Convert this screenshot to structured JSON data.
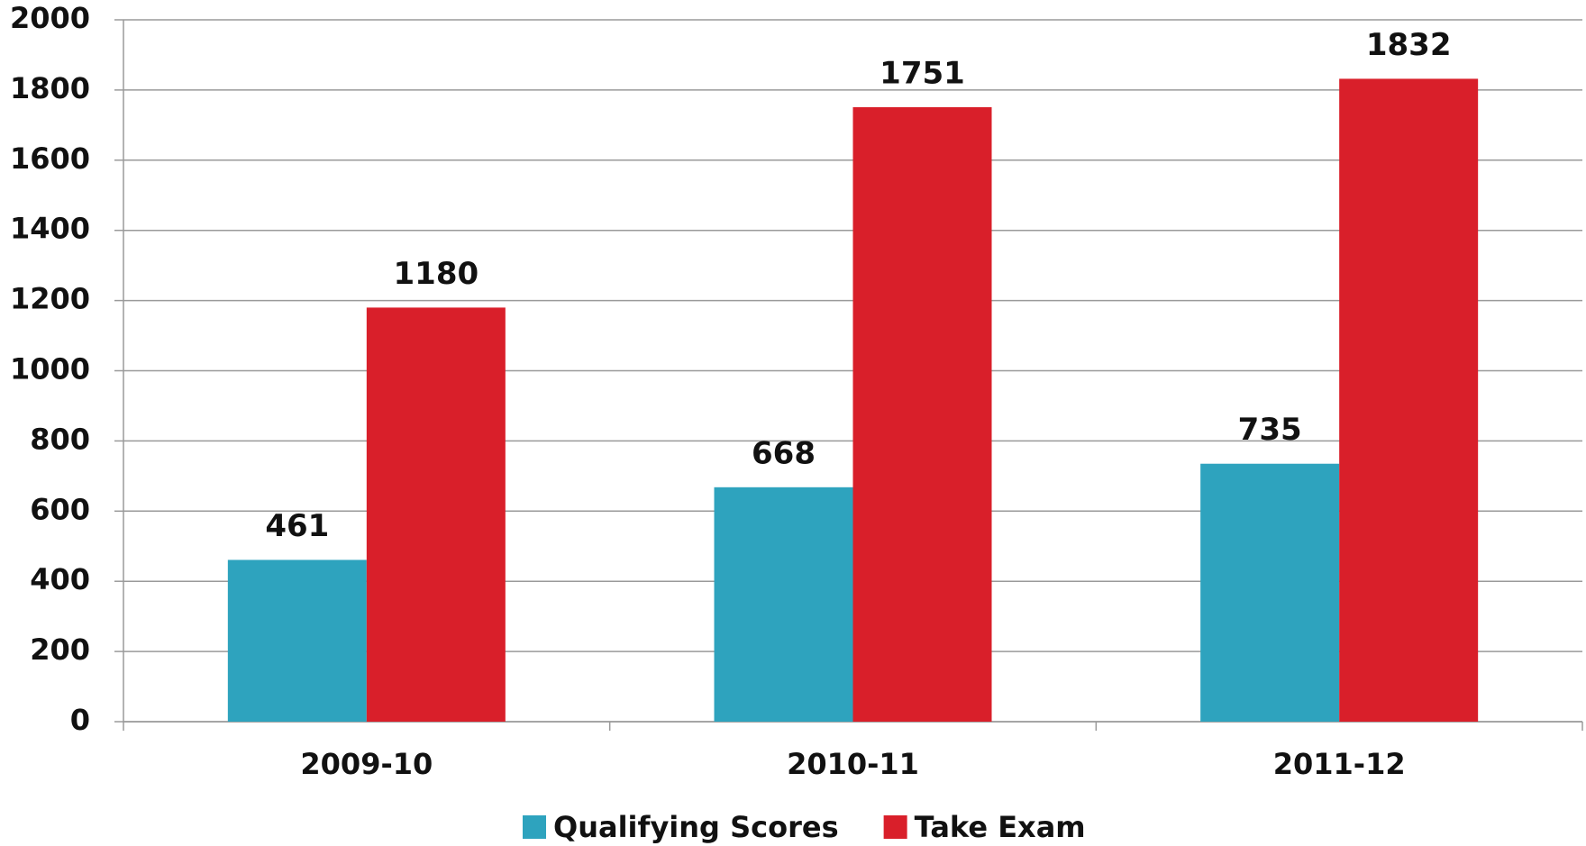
{
  "chart_data": {
    "type": "bar",
    "categories": [
      "2009-10",
      "2010-11",
      "2011-12"
    ],
    "series": [
      {
        "name": "Qualifying Scores",
        "color": "#2ea3be",
        "values": [
          461,
          668,
          735
        ]
      },
      {
        "name": "Take Exam",
        "color": "#d91f2a",
        "values": [
          1180,
          1751,
          1832
        ]
      }
    ],
    "ylim": [
      0,
      2000
    ],
    "yticks": [
      0,
      200,
      400,
      600,
      800,
      1000,
      1200,
      1400,
      1600,
      1800,
      2000
    ],
    "grid": true,
    "legend": "bottom"
  }
}
